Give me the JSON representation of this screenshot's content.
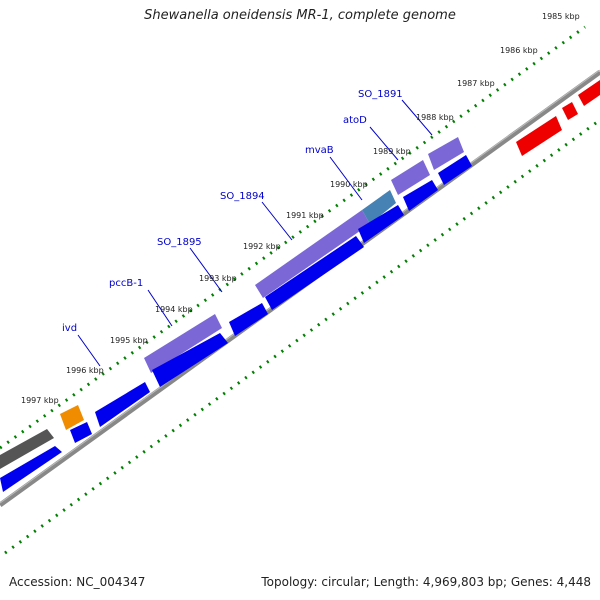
{
  "title": "Shewanella oneidensis MR-1, complete genome",
  "footer": {
    "accession": "Accession: NC_004347",
    "summary": "Topology: circular; Length: 4,969,803 bp; Genes: 4,448"
  },
  "ticks": [
    "1985 kbp",
    "1986 kbp",
    "1987 kbp",
    "1988 kbp",
    "1989 kbp",
    "1990 kbp",
    "1991 kbp",
    "1992 kbp",
    "1993 kbp",
    "1994 kbp",
    "1995 kbp",
    "1996 kbp",
    "1997 kbp"
  ],
  "gene_labels": [
    "SO_1891",
    "atoD",
    "mvaB",
    "SO_1894",
    "SO_1895",
    "pccB-1",
    "ivd"
  ],
  "colors": {
    "backbone": "#888888",
    "forward_cds": "#0000ee",
    "reverse_cds": "#7b68d6",
    "highlight": "#4682b4",
    "red": "#ee0000",
    "orange": "#f08c00",
    "gray": "#555555",
    "tick": "#008000",
    "label": "#0000cc"
  }
}
